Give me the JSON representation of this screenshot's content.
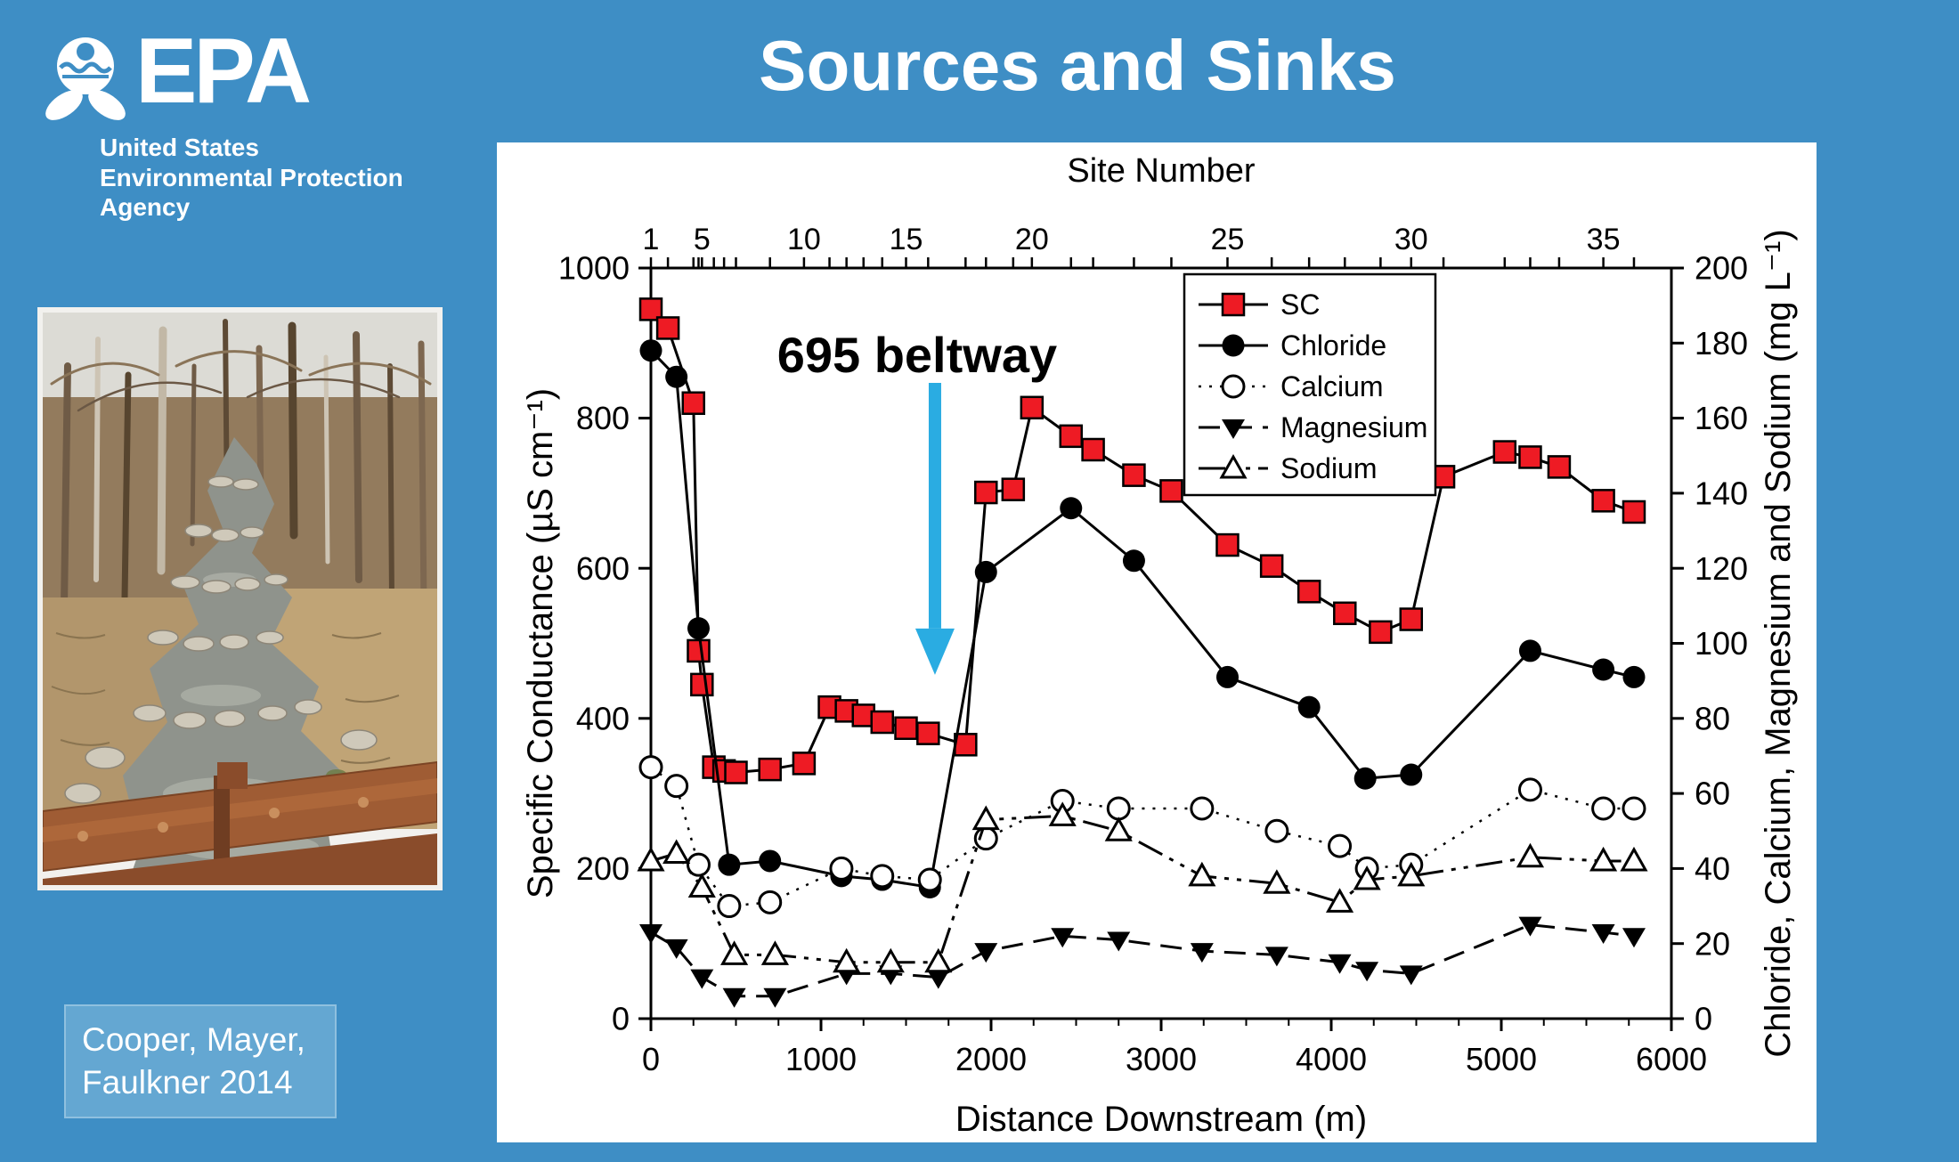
{
  "slide": {
    "background_color": "#3E8EC5",
    "title": "Sources and Sinks",
    "citation_line1": "Cooper, Mayer,",
    "citation_line2": "Faulkner 2014"
  },
  "epa_logo": {
    "acronym": "EPA",
    "tagline_line1": "United States",
    "tagline_line2": "Environmental Protection",
    "tagline_line3": "Agency"
  },
  "chart_data": {
    "type": "line",
    "top_axis_title": "Site Number",
    "xlabel": "Distance Downstream (m)",
    "ylabel_left": "Specific Conductance (µS cm⁻¹)",
    "ylabel_right": "Chloride, Calcium, Magnesium and Sodium (mg L⁻¹)",
    "xlim": [
      0,
      6000
    ],
    "ylim_left": [
      0,
      1000
    ],
    "ylim_right": [
      0,
      200
    ],
    "x_tick_major": 1000,
    "x_tick_minor": 250,
    "left_tick_step": 200,
    "right_tick_step": 20,
    "right_axis_scale": 5,
    "grid": "off",
    "legend_position": "upper right",
    "site_positions_m": [
      0,
      100,
      250,
      280,
      300,
      370,
      430,
      500,
      700,
      900,
      1050,
      1150,
      1250,
      1360,
      1500,
      1630,
      1850,
      1970,
      2130,
      2240,
      2470,
      2600,
      2840,
      3060,
      3390,
      3650,
      3870,
      4080,
      4290,
      4470,
      4660,
      5020,
      5170,
      5340,
      5600,
      5780
    ],
    "site_label_values": [
      1,
      5,
      10,
      15,
      20,
      25,
      30,
      35
    ],
    "site_label_positions_m": [
      0,
      300,
      900,
      1500,
      2240,
      3390,
      4470,
      5600
    ],
    "annotation": {
      "text": "695 beltway",
      "arrow_color": "#2AACE2",
      "text_center_m": 1565,
      "text_value_left_axis": 861,
      "arrow_x_m": 1670,
      "arrow_top_left_axis": 847,
      "arrow_tip_left_axis": 458
    },
    "series": [
      {
        "name": "SC",
        "axis": "left",
        "unit": "µS cm⁻¹",
        "marker": "filled-square",
        "marker_color": "#EE1B24",
        "line": "solid",
        "x_m": [
          0,
          100,
          250,
          280,
          300,
          370,
          430,
          500,
          700,
          900,
          1050,
          1150,
          1250,
          1360,
          1500,
          1630,
          1850,
          1970,
          2130,
          2240,
          2470,
          2600,
          2840,
          3060,
          3390,
          3650,
          3870,
          4080,
          4290,
          4470,
          4660,
          5020,
          5170,
          5340,
          5600,
          5780
        ],
        "values": [
          945,
          920,
          820,
          490,
          445,
          335,
          330,
          328,
          332,
          340,
          415,
          410,
          404,
          395,
          387,
          380,
          365,
          701,
          705,
          814,
          776,
          758,
          724,
          703,
          631,
          603,
          569,
          540,
          515,
          532,
          722,
          755,
          748,
          735,
          690,
          675
        ]
      },
      {
        "name": "Chloride",
        "axis": "right",
        "unit": "mg L⁻¹",
        "marker": "filled-circle",
        "marker_color": "#000000",
        "line": "solid",
        "x_m": [
          0,
          150,
          280,
          460,
          700,
          1120,
          1360,
          1640,
          1970,
          2470,
          2840,
          3390,
          3870,
          4200,
          4470,
          5170,
          5600,
          5780
        ],
        "values": [
          178,
          171,
          104,
          41,
          42,
          38,
          37,
          35,
          119,
          136,
          122,
          91,
          83,
          64,
          65,
          98,
          93,
          91
        ]
      },
      {
        "name": "Calcium",
        "axis": "right",
        "unit": "mg L⁻¹",
        "marker": "open-circle",
        "marker_color": "#ffffff",
        "line": "dotted",
        "x_m": [
          0,
          150,
          280,
          460,
          700,
          1120,
          1360,
          1640,
          1970,
          2420,
          2750,
          3240,
          3680,
          4050,
          4210,
          4470,
          5170,
          5600,
          5780
        ],
        "values": [
          67,
          62,
          41,
          30,
          31,
          40,
          38,
          37,
          48,
          58,
          56,
          56,
          50,
          46,
          40,
          41,
          61,
          56,
          56
        ]
      },
      {
        "name": "Magnesium",
        "axis": "right",
        "unit": "mg L⁻¹",
        "marker": "filled-triangle-down",
        "marker_color": "#000000",
        "line": "dashed",
        "x_m": [
          0,
          150,
          300,
          490,
          730,
          1150,
          1410,
          1690,
          1970,
          2420,
          2750,
          3240,
          3680,
          4050,
          4210,
          4470,
          5170,
          5600,
          5780
        ],
        "values": [
          23,
          19,
          11,
          6,
          6,
          12,
          12,
          11,
          18,
          22,
          21,
          18,
          17,
          15,
          13,
          12,
          25,
          23,
          22
        ]
      },
      {
        "name": "Sodium",
        "axis": "right",
        "unit": "mg L⁻¹",
        "marker": "open-triangle-up",
        "marker_color": "#ffffff",
        "line": "dash-dot",
        "x_m": [
          0,
          150,
          300,
          490,
          730,
          1150,
          1410,
          1690,
          1970,
          2420,
          2750,
          3240,
          3680,
          4050,
          4210,
          4470,
          5170,
          5600,
          5780
        ],
        "values": [
          42,
          44,
          35,
          17,
          17,
          15,
          15,
          15,
          53,
          54,
          50,
          38,
          36,
          31,
          37,
          38,
          43,
          42,
          42
        ]
      }
    ]
  }
}
